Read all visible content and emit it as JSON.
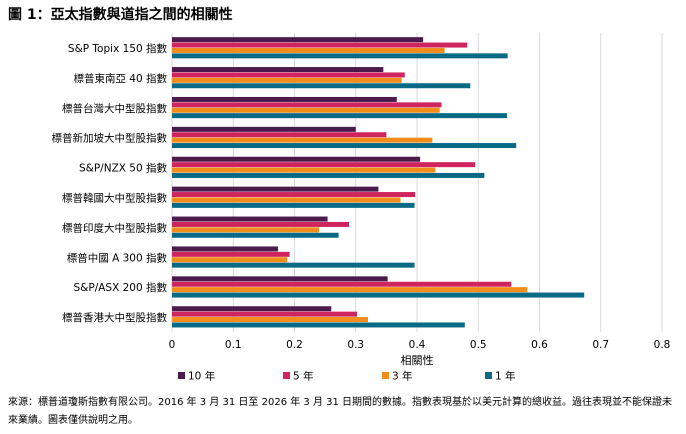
{
  "title": "圖 1：亞太指數與道指之間的相關性",
  "footnote": "來源：標普道瓊斯指數有限公司。2016 年 3 月 31 日至 2026 年 3 月 31 日期間的數據。指數表現基於以美元計算的總收益。過往表現並不能保證未來業績。圖表僅供說明之用。",
  "chart_data": {
    "type": "bar",
    "orientation": "horizontal",
    "categories": [
      "S&P Topix 150 指數",
      "標普東南亞 40 指數",
      "標普台灣大中型股指數",
      "標普新加坡大中型股指數",
      "S&P/NZX 50 指數",
      "標普韓國大中型股指數",
      "標普印度大中型股指數",
      "標普中國 A 300 指數",
      "S&P/ASX 200 指數",
      "標普香港大中型股指數"
    ],
    "series": [
      {
        "name": "10 年",
        "color": "#4b1b4e",
        "values": [
          0.41,
          0.345,
          0.367,
          0.3,
          0.405,
          0.337,
          0.254,
          0.173,
          0.352,
          0.26
        ]
      },
      {
        "name": "5 年",
        "color": "#d0245e",
        "values": [
          0.482,
          0.38,
          0.44,
          0.35,
          0.495,
          0.397,
          0.289,
          0.192,
          0.554,
          0.302
        ]
      },
      {
        "name": "3 年",
        "color": "#f28c1b",
        "values": [
          0.445,
          0.375,
          0.437,
          0.425,
          0.43,
          0.373,
          0.24,
          0.188,
          0.58,
          0.32
        ]
      },
      {
        "name": "1 年",
        "color": "#0a6a86",
        "values": [
          0.548,
          0.487,
          0.547,
          0.562,
          0.51,
          0.396,
          0.272,
          0.396,
          0.673,
          0.478
        ]
      }
    ],
    "xlabel": "相關性",
    "xlim": [
      0,
      0.8
    ],
    "xticks": [
      "0",
      "0.1",
      "0.2",
      "0.3",
      "0.4",
      "0.5",
      "0.6",
      "0.7",
      "0.8"
    ],
    "grid": "vertical",
    "legend_position": "bottom"
  }
}
